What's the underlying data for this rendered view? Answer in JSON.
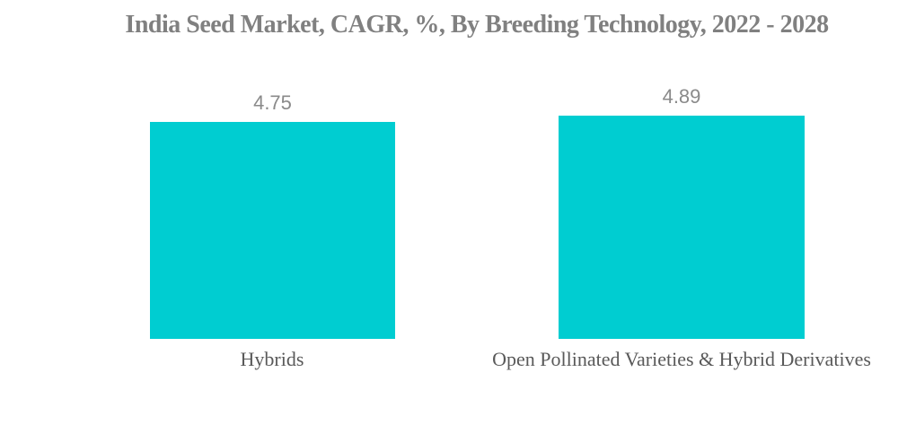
{
  "page": {
    "background_color": "#ffffff"
  },
  "title": {
    "text": "India Seed Market, CAGR, %, By Breeding Technology, 2022 - 2028",
    "color": "#808080"
  },
  "chart_data": {
    "type": "bar",
    "title": "India Seed Market, CAGR, %, By Breeding Technology, 2022 - 2028",
    "categories": [
      "Hybrids",
      "Open Pollinated Varieties & Hybrid Derivatives"
    ],
    "values": [
      4.75,
      4.89
    ],
    "value_labels": [
      "4.75",
      "4.89"
    ],
    "unit": "%",
    "xlabel": "",
    "ylabel": "",
    "ylim": [
      0,
      5
    ],
    "axes_visible": false,
    "grid": false,
    "legend": false,
    "bar_color": "#00CDD1",
    "value_label_color": "#8a8a8a",
    "category_label_color": "#595959",
    "title_color": "#808080"
  }
}
